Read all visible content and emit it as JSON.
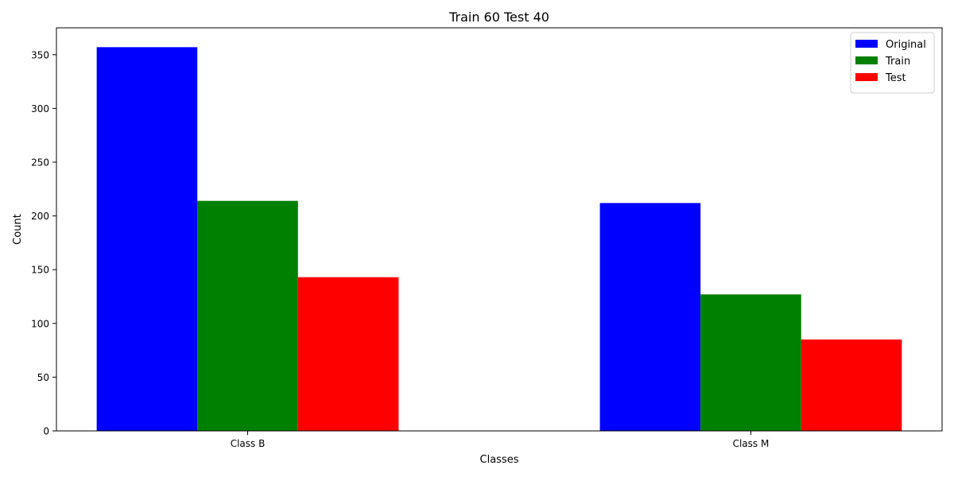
{
  "chart_data": {
    "type": "bar",
    "title": "Train 60 Test 40",
    "xlabel": "Classes",
    "ylabel": "Count",
    "categories": [
      "Class B",
      "Class M"
    ],
    "series": [
      {
        "name": "Original",
        "color": "#0000ff",
        "values": [
          357,
          212
        ]
      },
      {
        "name": "Train",
        "color": "#008000",
        "values": [
          214,
          127
        ]
      },
      {
        "name": "Test",
        "color": "#ff0000",
        "values": [
          143,
          85
        ]
      }
    ],
    "ylim": [
      0,
      375
    ],
    "yticks": [
      0,
      50,
      100,
      150,
      200,
      250,
      300,
      350
    ],
    "grid": false,
    "legend_position": "top-right"
  }
}
